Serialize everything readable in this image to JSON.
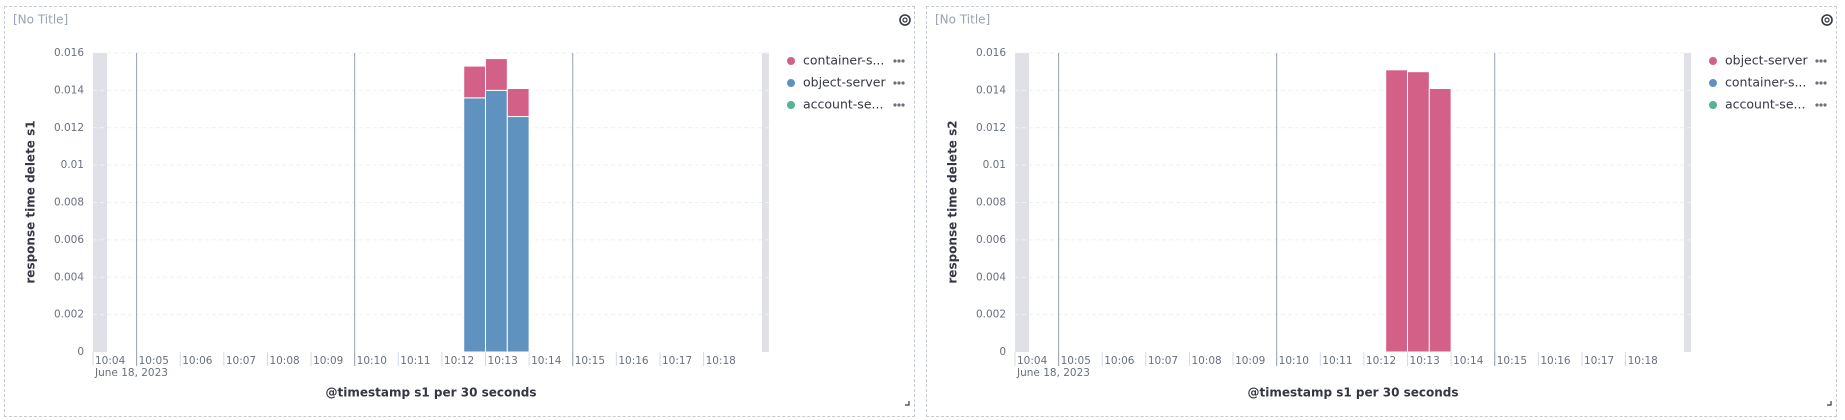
{
  "chart_data": [
    {
      "type": "bar",
      "stacked": true,
      "title": "[No Title]",
      "x_label": "@timestamp s1 per 30 seconds",
      "y_label": "response time delete s1",
      "x_date_label": "June 18, 2023",
      "x": [
        "10:12:30",
        "10:13:00",
        "10:13:30"
      ],
      "bar_width_seconds": 30,
      "series": [
        {
          "name": "container-s...",
          "color": "#d36086",
          "values": [
            0.0017,
            0.0017,
            0.0015
          ]
        },
        {
          "name": "object-server",
          "color": "#6092c0",
          "values": [
            0.0136,
            0.014,
            0.0126
          ]
        },
        {
          "name": "account-se...",
          "color": "#54b399",
          "values": [
            null,
            null,
            null
          ]
        }
      ],
      "xlim": [
        "10:04",
        "10:19:30"
      ],
      "xticks": [
        "10:04",
        "10:05",
        "10:06",
        "10:07",
        "10:08",
        "10:09",
        "10:10",
        "10:11",
        "10:12",
        "10:13",
        "10:14",
        "10:15",
        "10:16",
        "10:17",
        "10:18"
      ],
      "ylim": [
        0,
        0.016
      ],
      "yticks": [
        0,
        0.002,
        0.004,
        0.006,
        0.008,
        0.01,
        0.012,
        0.014,
        0.016
      ],
      "grid": true,
      "legend": "right"
    },
    {
      "type": "bar",
      "stacked": true,
      "title": "[No Title]",
      "x_label": "@timestamp s1 per 30 seconds",
      "y_label": "response time delete s2",
      "x_date_label": "June 18, 2023",
      "x": [
        "10:12:30",
        "10:13:00",
        "10:13:30"
      ],
      "bar_width_seconds": 30,
      "series": [
        {
          "name": "object-server",
          "color": "#d36086",
          "values": [
            0.0151,
            0.015,
            0.0141
          ]
        },
        {
          "name": "container-s...",
          "color": "#6092c0",
          "values": [
            null,
            null,
            null
          ]
        },
        {
          "name": "account-se...",
          "color": "#54b399",
          "values": [
            null,
            null,
            null
          ]
        }
      ],
      "xlim": [
        "10:04",
        "10:19:30"
      ],
      "xticks": [
        "10:04",
        "10:05",
        "10:06",
        "10:07",
        "10:08",
        "10:09",
        "10:10",
        "10:11",
        "10:12",
        "10:13",
        "10:14",
        "10:15",
        "10:16",
        "10:17",
        "10:18"
      ],
      "ylim": [
        0,
        0.016
      ],
      "yticks": [
        0,
        0.002,
        0.004,
        0.006,
        0.008,
        0.01,
        0.012,
        0.014,
        0.016
      ],
      "grid": true,
      "legend": "right"
    }
  ]
}
